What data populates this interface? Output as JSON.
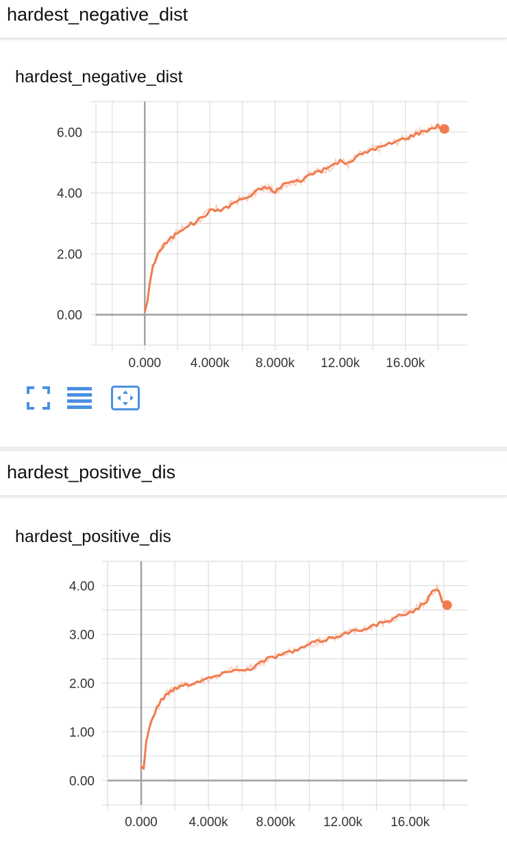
{
  "section1": {
    "header": "hardest_negative_dist"
  },
  "section2": {
    "header": "hardest_positive_dis"
  },
  "toolbar": {
    "icons": [
      "fullscreen-icon",
      "list-icon",
      "fit-domain-icon"
    ]
  },
  "colors": {
    "line": "#f07b4e",
    "raw": "#f8c7b2",
    "grid": "#dddddd",
    "axis": "#9e9e9e"
  },
  "chart_data": [
    {
      "type": "line",
      "title": "hardest_negative_dist",
      "xlabel": "",
      "ylabel": "",
      "xlim": [
        -3000,
        19800
      ],
      "ylim": [
        -1.0,
        7.0
      ],
      "xticks": [
        0,
        4000,
        8000,
        12000,
        16000
      ],
      "xtick_labels": [
        "0.000",
        "4.000k",
        "8.000k",
        "12.00k",
        "16.00k"
      ],
      "yticks": [
        0,
        2,
        4,
        6
      ],
      "ytick_labels": [
        "0.00",
        "2.00",
        "4.00",
        "6.00"
      ],
      "grid": true,
      "series": [
        {
          "x": [
            0,
            150,
            300,
            500,
            800,
            1200,
            1600,
            2000,
            2500,
            3000,
            3500,
            4000,
            4500,
            5000,
            5500,
            6000,
            6500,
            7000,
            7500,
            8000,
            8500,
            9000,
            9500,
            10000,
            10500,
            11000,
            11500,
            12000,
            12500,
            13000,
            13500,
            14000,
            14500,
            15000,
            15500,
            16000,
            16500,
            17000,
            17500,
            18000,
            18400
          ],
          "y": [
            0.1,
            0.4,
            1.0,
            1.6,
            2.0,
            2.3,
            2.5,
            2.7,
            2.9,
            3.0,
            3.2,
            3.4,
            3.45,
            3.5,
            3.7,
            3.8,
            3.9,
            4.1,
            4.2,
            4.0,
            4.3,
            4.35,
            4.4,
            4.55,
            4.7,
            4.75,
            4.9,
            5.05,
            4.95,
            5.2,
            5.3,
            5.45,
            5.5,
            5.6,
            5.7,
            5.8,
            5.9,
            6.0,
            6.1,
            6.2,
            6.1
          ]
        }
      ]
    },
    {
      "type": "line",
      "title": "hardest_positive_dis",
      "xlabel": "",
      "ylabel": "",
      "xlim": [
        -2000,
        19400
      ],
      "ylim": [
        -0.5,
        4.5
      ],
      "xticks": [
        0,
        4000,
        8000,
        12000,
        16000
      ],
      "xtick_labels": [
        "0.000",
        "4.000k",
        "8.000k",
        "12.00k",
        "16.00k"
      ],
      "yticks": [
        0,
        1,
        2,
        3,
        4
      ],
      "ytick_labels": [
        "0.00",
        "1.00",
        "2.00",
        "3.00",
        "4.00"
      ],
      "grid": true,
      "series": [
        {
          "x": [
            0,
            150,
            300,
            500,
            800,
            1200,
            1600,
            2000,
            2500,
            3000,
            3500,
            4000,
            4500,
            5000,
            5500,
            6000,
            6500,
            7000,
            7500,
            8000,
            8500,
            9000,
            9500,
            10000,
            10500,
            11000,
            11500,
            12000,
            12500,
            13000,
            13500,
            14000,
            14500,
            15000,
            15500,
            16000,
            16500,
            17000,
            17300,
            17600,
            17900,
            18200
          ],
          "y": [
            0.3,
            0.25,
            0.8,
            1.1,
            1.4,
            1.65,
            1.8,
            1.9,
            1.95,
            2.0,
            2.05,
            2.1,
            2.15,
            2.2,
            2.3,
            2.25,
            2.3,
            2.4,
            2.5,
            2.55,
            2.6,
            2.65,
            2.7,
            2.8,
            2.85,
            2.9,
            2.95,
            3.0,
            3.05,
            3.1,
            3.15,
            3.2,
            3.25,
            3.3,
            3.4,
            3.45,
            3.55,
            3.7,
            3.85,
            3.95,
            3.7,
            3.6
          ]
        }
      ]
    }
  ]
}
